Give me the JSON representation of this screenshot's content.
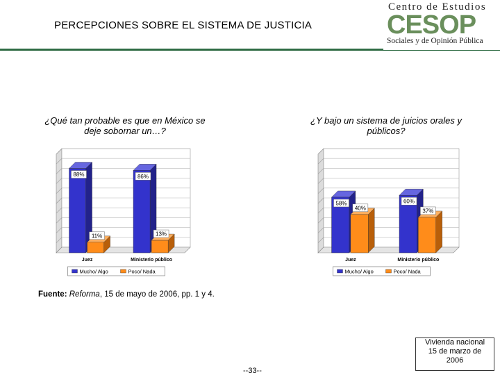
{
  "header": {
    "title": "PERCEPCIONES SOBRE EL SISTEMA DE JUSTICIA",
    "logo_top": "Centro de Estudios",
    "logo_big": "CESOP",
    "logo_sub": "Sociales y de Opinión Pública"
  },
  "questions": {
    "q1": "¿Qué tan probable es que en México se deje sobornar un…?",
    "q2": "¿Y bajo un sistema de juicios orales y públicos?"
  },
  "source": {
    "label": "Fuente:",
    "publication": "Reforma",
    "rest": ", 15 de mayo de 2006, pp. 1 y 4."
  },
  "page_number": "--33--",
  "note": {
    "line1": "Vivienda nacional",
    "line2": "15 de marzo de",
    "line3": "2006"
  },
  "colors": {
    "series1": "#3333cc",
    "series2": "#ff8c1a",
    "accent": "#2e6b43"
  },
  "chart_data": [
    {
      "type": "bar",
      "categories": [
        "Juez",
        "Ministerio público"
      ],
      "series": [
        {
          "name": "Mucho/ Algo",
          "values": [
            88,
            86
          ],
          "labels": [
            "88%",
            "86%"
          ]
        },
        {
          "name": "Poco/ Nada",
          "values": [
            11,
            13
          ],
          "labels": [
            "11%",
            "13%"
          ]
        }
      ],
      "ylim": [
        0,
        100
      ],
      "grid": true,
      "legend": "bottom"
    },
    {
      "type": "bar",
      "categories": [
        "Juez",
        "Ministerio público"
      ],
      "series": [
        {
          "name": "Mucho/ Algo",
          "values": [
            58,
            60
          ],
          "labels": [
            "58%",
            "60%"
          ]
        },
        {
          "name": "Poco/ Nada",
          "values": [
            40,
            37
          ],
          "labels": [
            "40%",
            "37%"
          ]
        }
      ],
      "ylim": [
        0,
        100
      ],
      "grid": true,
      "legend": "bottom"
    }
  ]
}
